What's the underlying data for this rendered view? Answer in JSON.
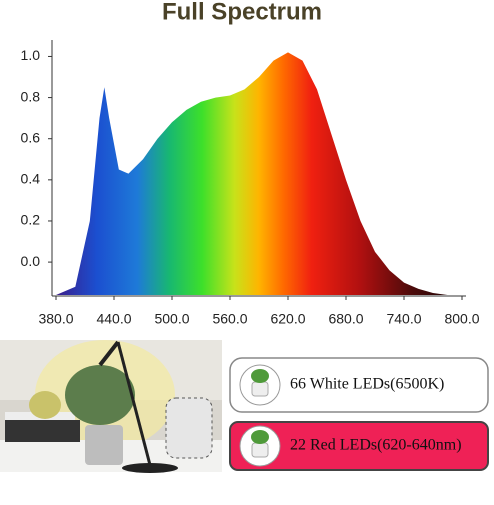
{
  "chart_data": {
    "type": "area",
    "title": "Full Spectrum",
    "x": [
      380,
      400,
      415,
      425,
      430,
      435,
      445,
      455,
      470,
      485,
      500,
      515,
      530,
      545,
      560,
      575,
      590,
      605,
      620,
      635,
      650,
      665,
      680,
      695,
      710,
      725,
      740,
      755,
      770,
      785,
      800
    ],
    "values": [
      -0.16,
      -0.12,
      0.2,
      0.7,
      0.85,
      0.7,
      0.45,
      0.43,
      0.5,
      0.6,
      0.68,
      0.74,
      0.78,
      0.8,
      0.81,
      0.84,
      0.9,
      0.98,
      1.02,
      0.98,
      0.84,
      0.62,
      0.4,
      0.2,
      0.05,
      -0.04,
      -0.1,
      -0.13,
      -0.15,
      -0.16,
      -0.16
    ],
    "xlim": [
      380,
      800
    ],
    "ylim": [
      -0.16,
      1.08
    ],
    "xticks": [
      {
        "value": 380,
        "label": "380.0"
      },
      {
        "value": 440,
        "label": "440.0"
      },
      {
        "value": 500,
        "label": "500.0"
      },
      {
        "value": 560,
        "label": "560.0"
      },
      {
        "value": 620,
        "label": "620.0"
      },
      {
        "value": 680,
        "label": "680.0"
      },
      {
        "value": 740,
        "label": "740.0"
      },
      {
        "value": 800,
        "label": "800.0"
      }
    ],
    "yticks": [
      {
        "value": 0,
        "label": "0.0"
      },
      {
        "value": 0.2,
        "label": "0.2"
      },
      {
        "value": 0.4,
        "label": "0.4"
      },
      {
        "value": 0.6,
        "label": "0.6"
      },
      {
        "value": 0.8,
        "label": "0.8"
      },
      {
        "value": 1,
        "label": "1.0"
      }
    ]
  },
  "led_boxes": [
    {
      "text": "66  White LEDs(6500K)"
    },
    {
      "text": "22 Red LEDs(620-640nm)"
    }
  ]
}
